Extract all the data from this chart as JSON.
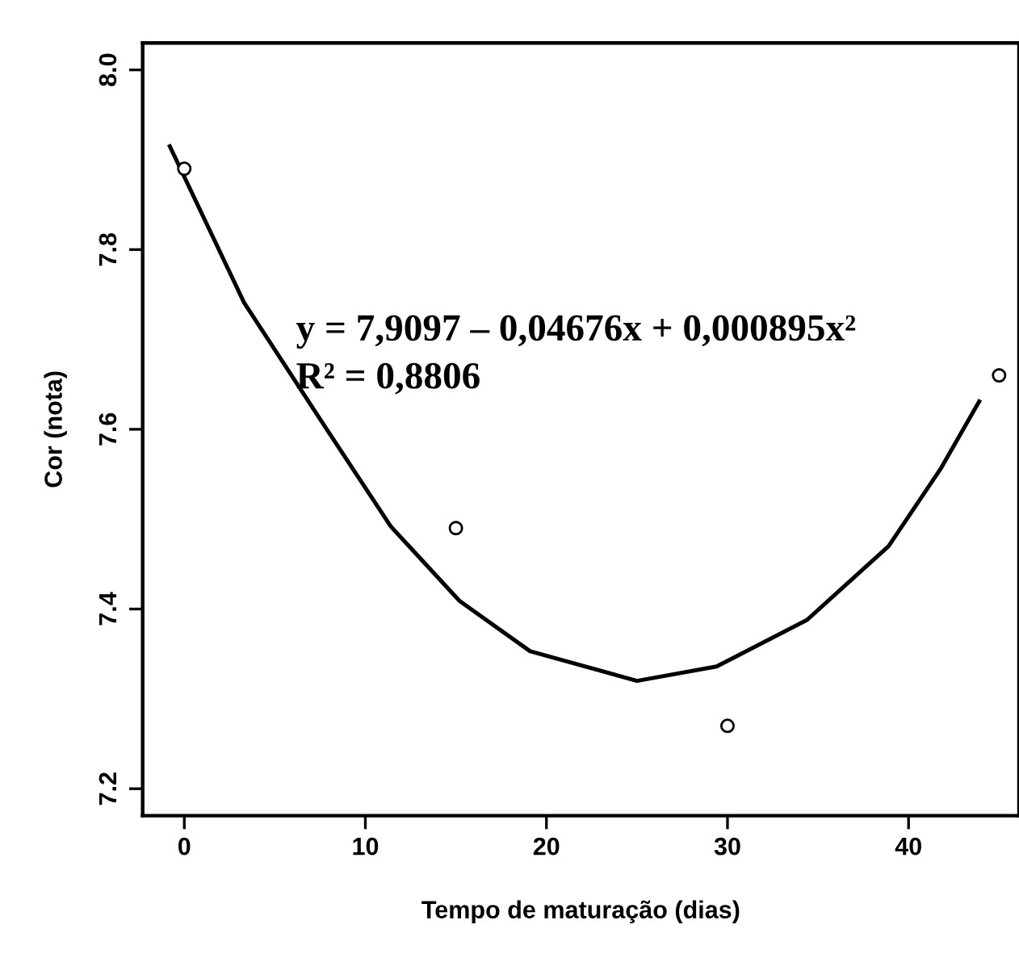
{
  "chart_data": {
    "type": "scatter",
    "xlabel": "Tempo de maturação (dias)",
    "ylabel": "Cor (nota)",
    "x": [
      0,
      15,
      30,
      45
    ],
    "series": [
      {
        "color": "#000000",
        "marker": "circle",
        "values": [
          7.89,
          7.49,
          7.27,
          7.66
        ]
      },
      {
        "type": "line",
        "color": "#000000",
        "x": [
          -0.8,
          3.3,
          7.8,
          11.4,
          15.2,
          19.1,
          25.0,
          29.4,
          34.4,
          38.9,
          41.8,
          43.9
        ],
        "values": [
          7.915,
          7.741,
          7.602,
          7.492,
          7.409,
          7.353,
          7.32,
          7.336,
          7.388,
          7.47,
          7.557,
          7.631
        ]
      }
    ],
    "annotations": [
      "y = 7,9097 – 0,04676x + 0,000895x²",
      "R² = 0,8806"
    ],
    "xlim": [
      -2.3,
      46.1
    ],
    "ylim": [
      7.17,
      8.03
    ],
    "xticks": [
      0,
      10,
      20,
      30,
      40
    ],
    "yticks": [
      7.2,
      7.4,
      7.6,
      7.8,
      {
        "value": 8,
        "label": "8.0"
      }
    ],
    "grid": false,
    "legend": false
  }
}
